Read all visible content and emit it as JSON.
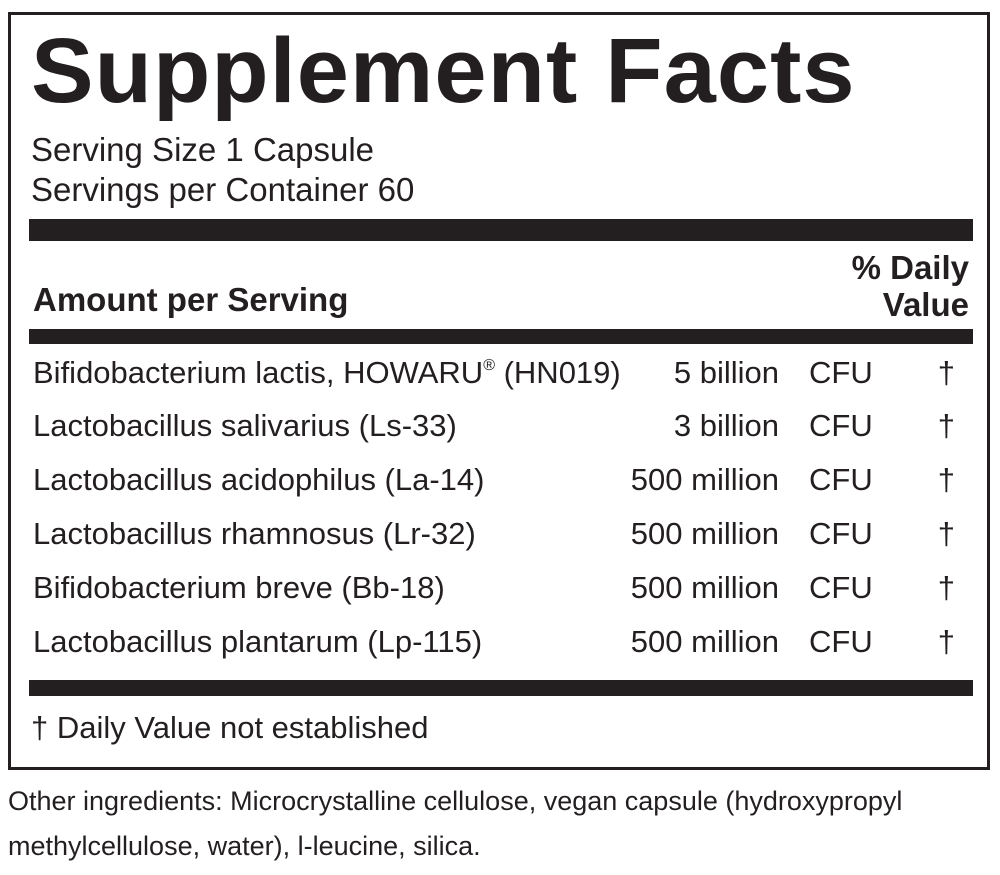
{
  "title": "Supplement Facts",
  "serving_size": "Serving Size 1 Capsule",
  "servings_per_container": "Servings per Container 60",
  "header": {
    "amount_per_serving": "Amount per Serving",
    "dv_line1": "% Daily",
    "dv_line2": "Value"
  },
  "rows": [
    {
      "name": "Bifidobacterium lactis, HOWARU",
      "reg": "®",
      "name_suffix": " (HN019)",
      "amount": "5 billion",
      "unit": "CFU",
      "dv": "†"
    },
    {
      "name": "Lactobacillus salivarius (Ls-33)",
      "amount": "3 billion",
      "unit": "CFU",
      "dv": "†"
    },
    {
      "name": "Lactobacillus acidophilus (La-14)",
      "amount": "500 million",
      "unit": "CFU",
      "dv": "†"
    },
    {
      "name": "Lactobacillus rhamnosus (Lr-32)",
      "amount": "500 million",
      "unit": "CFU",
      "dv": "†"
    },
    {
      "name": "Bifidobacterium breve (Bb-18)",
      "amount": "500 million",
      "unit": "CFU",
      "dv": "†"
    },
    {
      "name": "Lactobacillus plantarum (Lp-115)",
      "amount": "500 million",
      "unit": "CFU",
      "dv": "†"
    }
  ],
  "footnote": "† Daily Value not established",
  "other_ingredients_line1": "Other ingredients: Microcrystalline cellulose, vegan capsule (hydroxypropyl",
  "other_ingredients_line2": "methylcellulose, water), l-leucine, silica."
}
